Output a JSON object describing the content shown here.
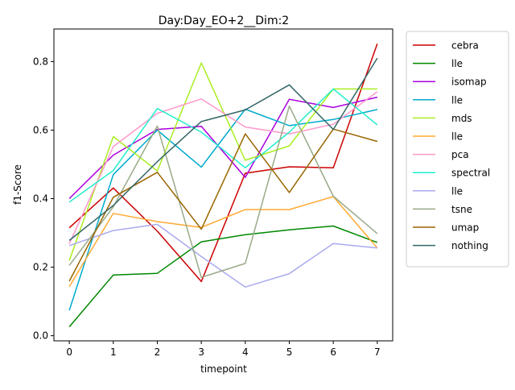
{
  "chart_data": {
    "type": "line",
    "title": "Day:Day_EO+2__Dim:2",
    "xlabel": "timepoint",
    "ylabel": "f1-Score",
    "x": [
      0,
      1,
      2,
      3,
      4,
      5,
      6,
      7
    ],
    "xticks": [
      "0",
      "1",
      "2",
      "3",
      "4",
      "5",
      "6",
      "7"
    ],
    "yticks": [
      "0.0",
      "0.2",
      "0.4",
      "0.6",
      "0.8"
    ],
    "xlim": [
      -0.35,
      7.35
    ],
    "ylim": [
      -0.015,
      0.895
    ],
    "grid": false,
    "legend_position": "outside-right",
    "series": [
      {
        "name": "cebra",
        "color": "#cc0000",
        "values": [
          0.315,
          0.431,
          0.305,
          0.158,
          0.474,
          0.493,
          0.49,
          0.852
        ]
      },
      {
        "name": "lle",
        "color": "#008800",
        "values": [
          0.026,
          0.177,
          0.182,
          0.274,
          0.295,
          0.309,
          0.32,
          0.272
        ]
      },
      {
        "name": "isomap",
        "color": "#aa00dd",
        "values": [
          0.4,
          0.527,
          0.602,
          0.611,
          0.462,
          0.69,
          0.666,
          0.696
        ]
      },
      {
        "name": "lle",
        "color": "#00aacc",
        "values": [
          0.074,
          0.47,
          0.6,
          0.492,
          0.661,
          0.613,
          0.631,
          0.66
        ]
      },
      {
        "name": "mds",
        "color": "#aaee22",
        "values": [
          0.219,
          0.581,
          0.481,
          0.796,
          0.512,
          0.554,
          0.72,
          0.72
        ]
      },
      {
        "name": "lle",
        "color": "#ffaa33",
        "values": [
          0.143,
          0.357,
          0.333,
          0.316,
          0.368,
          0.368,
          0.406,
          0.256
        ]
      },
      {
        "name": "pca",
        "color": "#ff99cc",
        "values": [
          0.268,
          0.552,
          0.649,
          0.691,
          0.609,
          0.589,
          0.617,
          0.712
        ]
      },
      {
        "name": "spectral",
        "color": "#22eecc",
        "values": [
          0.39,
          0.482,
          0.663,
          0.594,
          0.49,
          0.594,
          0.72,
          0.615
        ]
      },
      {
        "name": "lle",
        "color": "#aaaaee",
        "values": [
          0.263,
          0.307,
          0.325,
          0.231,
          0.142,
          0.181,
          0.269,
          0.256
        ]
      },
      {
        "name": "tsne",
        "color": "#99aa88",
        "values": [
          0.205,
          0.376,
          0.612,
          0.17,
          0.211,
          0.67,
          0.407,
          0.298
        ]
      },
      {
        "name": "umap",
        "color": "#996600",
        "values": [
          0.159,
          0.404,
          0.477,
          0.311,
          0.589,
          0.418,
          0.603,
          0.567
        ]
      },
      {
        "name": "nothing",
        "color": "#336666",
        "values": [
          0.278,
          0.38,
          0.508,
          0.625,
          0.659,
          0.732,
          0.602,
          0.81
        ]
      }
    ]
  }
}
